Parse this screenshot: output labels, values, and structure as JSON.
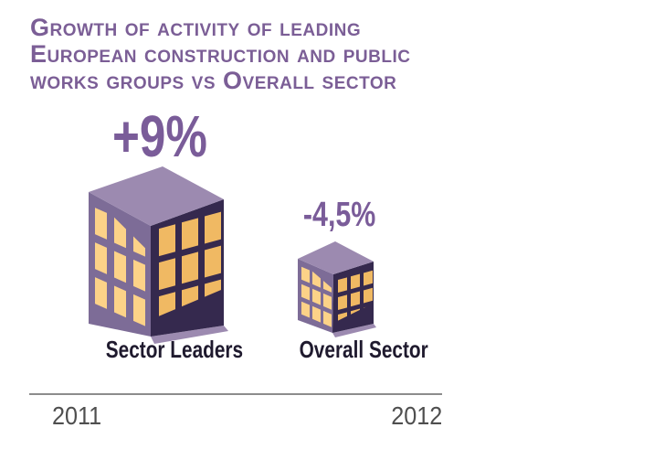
{
  "title": {
    "lines": [
      "Growth of activity of leading",
      "European construction and public",
      "works groups vs Overall sector"
    ]
  },
  "chart_data": {
    "type": "bar",
    "style": "isometric-building-pictogram",
    "title": "Growth of activity of leading European construction and public works groups vs Overall sector",
    "categories": [
      "Sector Leaders",
      "Overall Sector"
    ],
    "values": [
      9,
      -4.5
    ],
    "value_labels": [
      "+9%",
      "-4,5%"
    ],
    "unit": "%",
    "period": [
      "2011",
      "2012"
    ],
    "grid": false,
    "legend_position": "none"
  },
  "buildings": [
    {
      "name": "sector-leaders",
      "label": "Sector Leaders",
      "value_label": "+9%",
      "icon": "building-isometric-icon",
      "size": "large",
      "windows_left_face": "3x3",
      "windows_right_face": "3x3"
    },
    {
      "name": "overall-sector",
      "label": "Overall Sector",
      "value_label": "-4,5%",
      "icon": "building-isometric-icon",
      "size": "small",
      "windows_left_face": "3x3",
      "windows_right_face": "3x3"
    }
  ],
  "timeline": {
    "start": "2011",
    "end": "2012"
  },
  "palette": {
    "background": "#ffffff",
    "title_text": "#7b5e96",
    "stat_text": "#7a5c99",
    "label_text": "#1f1a2e",
    "year_text": "#4f4f4f",
    "divider": "#8c8c8c",
    "roof": "#9c8ab0",
    "face_left": "#7d6c97",
    "face_right": "#35294e",
    "window_left": "#fcd288",
    "window_right": "#f0b963"
  }
}
